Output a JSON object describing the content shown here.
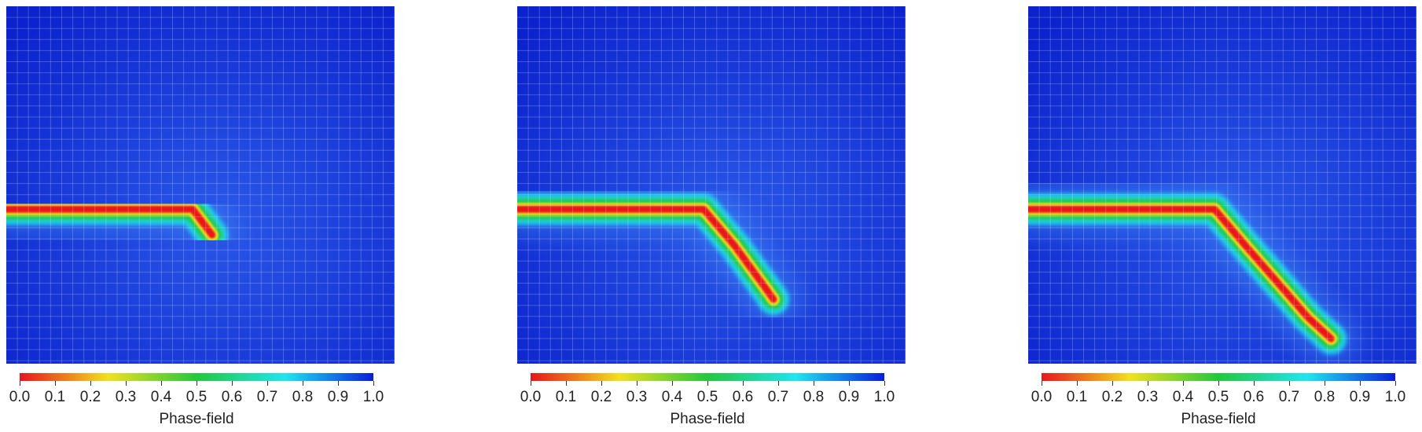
{
  "colormap": {
    "stops": [
      {
        "t": 0.0,
        "color": "#e8141c"
      },
      {
        "t": 0.25,
        "color": "#f2e11e"
      },
      {
        "t": 0.5,
        "color": "#22c83c"
      },
      {
        "t": 0.75,
        "color": "#1ee6f0"
      },
      {
        "t": 1.0,
        "color": "#0a1edc"
      }
    ]
  },
  "panels": [
    {
      "name": "crack-panel-1",
      "colorbar": {
        "title": "Phase-field",
        "ticks": [
          "0.0",
          "0.1",
          "0.2",
          "0.3",
          "0.4",
          "0.5",
          "0.6",
          "0.7",
          "0.8",
          "0.9",
          "1.0"
        ]
      },
      "crack_path": [
        [
          0.0,
          0.568
        ],
        [
          0.48,
          0.568
        ],
        [
          0.53,
          0.64
        ]
      ]
    },
    {
      "name": "crack-panel-2",
      "colorbar": {
        "title": "Phase-field",
        "ticks": [
          "0.0",
          "0.1",
          "0.2",
          "0.3",
          "0.4",
          "0.5",
          "0.6",
          "0.7",
          "0.8",
          "0.9",
          "1.0"
        ]
      },
      "crack_path": [
        [
          0.0,
          0.568
        ],
        [
          0.48,
          0.568
        ],
        [
          0.56,
          0.67
        ],
        [
          0.64,
          0.79
        ],
        [
          0.66,
          0.82
        ]
      ]
    },
    {
      "name": "crack-panel-3",
      "colorbar": {
        "title": "Phase-field",
        "ticks": [
          "0.0",
          "0.1",
          "0.2",
          "0.3",
          "0.4",
          "0.5",
          "0.6",
          "0.7",
          "0.8",
          "0.9",
          "1.0"
        ]
      },
      "crack_path": [
        [
          0.0,
          0.568
        ],
        [
          0.48,
          0.568
        ],
        [
          0.56,
          0.67
        ],
        [
          0.64,
          0.77
        ],
        [
          0.72,
          0.87
        ],
        [
          0.78,
          0.93
        ]
      ]
    }
  ]
}
